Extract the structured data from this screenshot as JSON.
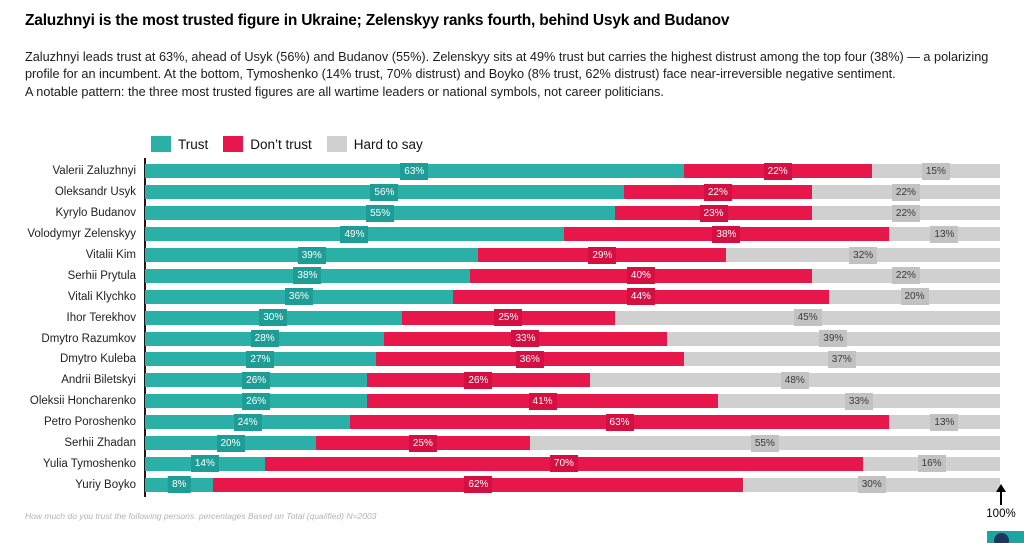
{
  "header": {
    "title": "Zaluzhnyi is the most trusted figure in Ukraine; Zelenskyy ranks fourth, behind Usyk and Budanov"
  },
  "intro": {
    "paragraph1": "Zaluzhnyi leads trust at 63%, ahead of Usyk (56%) and Budanov (55%). Zelenskyy sits at 49% trust but carries the highest distrust among the top four (38%) — a polarizing profile for an incumbent. At the bottom, Tymoshenko (14% trust, 70% distrust) and Boyko (8% trust, 62% distrust) face near-irreversible negative sentiment.",
    "paragraph2": "A notable pattern: the three most trusted figures are all wartime leaders or national symbols, not career politicians."
  },
  "legend": {
    "items": [
      {
        "label": "Trust",
        "color": "#2BB0A8"
      },
      {
        "label": "Don’t trust",
        "color": "#E8174B"
      },
      {
        "label": "Hard to say",
        "color": "#D0D0D0"
      }
    ]
  },
  "chart_data": {
    "type": "bar",
    "orientation": "horizontal",
    "stacked": true,
    "xlim": [
      0,
      100
    ],
    "value_suffix": "%",
    "grid": false,
    "legend_position": "top",
    "categories": [
      "Valerii Zaluzhnyi",
      "Oleksandr Usyk",
      "Kyrylo Budanov",
      "Volodymyr Zelenskyy",
      "Vitalii Kim",
      "Serhii Prytula",
      "Vitali Klychko",
      "Ihor Terekhov",
      "Dmytro Razumkov",
      "Dmytro Kuleba",
      "Andrii Biletskyi",
      "Oleksii Honcharenko",
      "Petro Poroshenko",
      "Serhii Zhadan",
      "Yulia Tymoshenko",
      "Yuriy Boyko"
    ],
    "series": [
      {
        "name": "Trust",
        "key": "trust",
        "color": "#2BB0A8",
        "badge_color": "#1E9D96",
        "label_text_color": "#ffffff",
        "values": [
          63,
          56,
          55,
          49,
          39,
          38,
          36,
          30,
          28,
          27,
          26,
          26,
          24,
          20,
          14,
          8
        ]
      },
      {
        "name": "Don’t trust",
        "key": "dont-trust",
        "color": "#E8174B",
        "badge_color": "#D41043",
        "label_text_color": "#ffffff",
        "values": [
          22,
          22,
          23,
          38,
          29,
          40,
          44,
          25,
          33,
          36,
          26,
          41,
          63,
          25,
          70,
          62
        ]
      },
      {
        "name": "Hard to say",
        "key": "hard-to-say",
        "color": "#D0D0D0",
        "badge_color": "#C2C2C2",
        "label_text_color": "#3b3b3b",
        "values": [
          15,
          22,
          22,
          13,
          32,
          22,
          20,
          45,
          39,
          37,
          48,
          33,
          13,
          55,
          16,
          30
        ]
      }
    ]
  },
  "axis": {
    "max_label": "100%"
  },
  "footnote": "How much do you trust the following persons. percentages Based on Total (qualified) N=2003",
  "logo": {
    "teal": "#1BA6A1",
    "navy": "#1E3563"
  }
}
